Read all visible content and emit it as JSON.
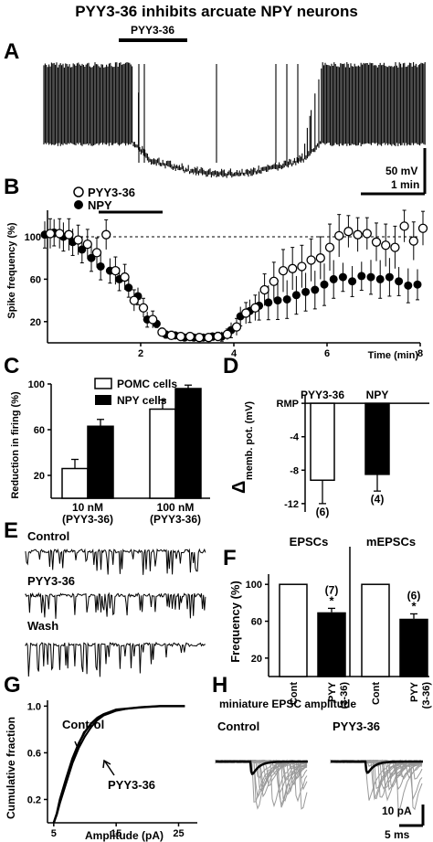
{
  "title": "PYY3-36 inhibits arcuate NPY neurons",
  "panels": {
    "A": {
      "letter": "A",
      "bar_label": "PYY3-36",
      "scale_mv": "50 mV",
      "scale_min": "1 min"
    },
    "B": {
      "letter": "B"
    },
    "C": {
      "letter": "C"
    },
    "D": {
      "letter": "D"
    },
    "E": {
      "letter": "E",
      "traces": [
        "Control",
        "PYY3-36",
        "Wash"
      ]
    },
    "F": {
      "letter": "F"
    },
    "G": {
      "letter": "G",
      "label_control": "Control",
      "label_pyy": "PYY3-36"
    },
    "H": {
      "letter": "H",
      "subtitle": "miniature EPSC amplitude",
      "label_control": "Control",
      "label_pyy": "PYY3-36",
      "scale_pa": "10 pA",
      "scale_ms": "5 ms"
    }
  },
  "chart_data": [
    {
      "panel": "B",
      "type": "scatter",
      "xlabel": "Time (min)",
      "ylabel": "Spike frequency (%)",
      "xlim": [
        0,
        8
      ],
      "ylim": [
        0,
        125
      ],
      "xticks": [
        2,
        4,
        6,
        8
      ],
      "yticks": [
        20,
        60,
        100
      ],
      "reference_line": 100,
      "drug_bar_label": "",
      "series": [
        {
          "name": "PYY3-36",
          "marker": "open-circle",
          "x": [
            0,
            0.2,
            0.4,
            0.6,
            0.8,
            1.0,
            1.2,
            1.4,
            1.6,
            1.8,
            2.0,
            2.2,
            2.4,
            2.6,
            2.8,
            3.0,
            3.2,
            3.4,
            3.6,
            3.8,
            4.0,
            4.2,
            4.4,
            4.6,
            4.8,
            5.0,
            5.2,
            5.4,
            5.6,
            5.8,
            6.0,
            6.2,
            6.4,
            6.6,
            6.8,
            7.0,
            7.2,
            7.4,
            7.6,
            7.8,
            8.0
          ],
          "y": [
            103,
            103,
            102,
            97,
            93,
            85,
            102,
            68,
            62,
            40,
            33,
            22,
            10,
            7,
            6,
            6,
            5,
            5,
            6,
            8,
            15,
            28,
            33,
            50,
            58,
            68,
            70,
            72,
            78,
            80,
            90,
            101,
            105,
            102,
            103,
            95,
            92,
            90,
            110,
            96,
            108
          ],
          "err": [
            14,
            14,
            15,
            14,
            14,
            14,
            14,
            13,
            12,
            10,
            9,
            8,
            4,
            4,
            3,
            3,
            3,
            3,
            4,
            5,
            8,
            10,
            12,
            15,
            18,
            20,
            20,
            20,
            20,
            20,
            22,
            20,
            15,
            16,
            15,
            18,
            20,
            20,
            15,
            18,
            16
          ]
        },
        {
          "name": "NPY",
          "marker": "filled-circle",
          "x": [
            0,
            0.2,
            0.4,
            0.6,
            0.8,
            1.0,
            1.2,
            1.4,
            1.6,
            1.8,
            2.0,
            2.2,
            2.4,
            2.6,
            2.8,
            3.0,
            3.2,
            3.4,
            3.6,
            3.8,
            4.0,
            4.2,
            4.4,
            4.6,
            4.8,
            5.0,
            5.2,
            5.4,
            5.6,
            5.8,
            6.0,
            6.2,
            6.4,
            6.6,
            6.8,
            7.0,
            7.2,
            7.4,
            7.6,
            7.8,
            8.0
          ],
          "y": [
            102,
            104,
            100,
            95,
            88,
            80,
            72,
            68,
            60,
            52,
            44,
            22,
            18,
            8,
            7,
            5,
            5,
            5,
            6,
            6,
            12,
            25,
            30,
            35,
            38,
            40,
            41,
            45,
            48,
            50,
            55,
            60,
            62,
            58,
            63,
            62,
            60,
            62,
            58,
            54,
            55
          ]
        },
        {
          "name": "PYY3-36 error",
          "marker": "none",
          "hidden": true
        }
      ]
    },
    {
      "panel": "C",
      "type": "bar",
      "ylabel": "Reduction in firing (%)",
      "ylim": [
        0,
        100
      ],
      "yticks": [
        20,
        60,
        100
      ],
      "categories": [
        "10 nM (PYY3-36)",
        "100 nM (PYY3-36)"
      ],
      "series": [
        {
          "name": "POMC cells",
          "values": [
            26,
            78
          ],
          "err": [
            8,
            8
          ],
          "fill": "#ffffff"
        },
        {
          "name": "NPY cells",
          "values": [
            63,
            96
          ],
          "err": [
            6,
            3
          ],
          "fill": "#000000"
        }
      ]
    },
    {
      "panel": "D",
      "type": "bar",
      "ylabel": "memb. pot. (mV)",
      "ylabel_prefix": "Δ",
      "ylim": [
        -13,
        1
      ],
      "yticks": [
        0,
        -4,
        -8,
        -12
      ],
      "ytick_labels": [
        "RMP",
        "-4",
        "-8",
        "-12"
      ],
      "categories": [
        "PYY3-36",
        "NPY"
      ],
      "values": [
        -9.2,
        -8.5
      ],
      "err": [
        2.8,
        2.0
      ],
      "n": [
        "(6)",
        "(4)"
      ],
      "fills": [
        "#ffffff",
        "#000000"
      ]
    },
    {
      "panel": "F",
      "type": "bar",
      "ylabel": "Frequency (%)",
      "ylim": [
        0,
        100
      ],
      "yticks": [
        20,
        60,
        100
      ],
      "groups": [
        {
          "title": "EPSCs",
          "categories": [
            "Cont",
            "PYY (3-36)"
          ],
          "values": [
            100,
            69
          ],
          "err": [
            0,
            5
          ],
          "n": "(7)",
          "sig": "*"
        },
        {
          "title": "mEPSCs",
          "categories": [
            "Cont",
            "PYY (3-36)"
          ],
          "values": [
            100,
            62
          ],
          "err": [
            0,
            6
          ],
          "n": "(6)",
          "sig": "*"
        }
      ]
    },
    {
      "panel": "G",
      "type": "line",
      "xlabel": "Amplitude (pA)",
      "ylabel": "Cumulative fraction",
      "xlim": [
        4,
        28
      ],
      "ylim": [
        0,
        1.05
      ],
      "xticks": [
        5,
        15,
        25
      ],
      "yticks": [
        0.2,
        0.6,
        1.0
      ],
      "ytick_labels": [
        "0.2",
        "0.6",
        "1.0"
      ],
      "series": [
        {
          "name": "Control",
          "x": [
            5,
            5.5,
            6,
            7,
            8,
            9,
            10,
            11,
            12,
            13,
            14,
            15,
            17,
            19,
            22,
            26
          ],
          "y": [
            0.0,
            0.08,
            0.2,
            0.38,
            0.55,
            0.68,
            0.78,
            0.85,
            0.9,
            0.93,
            0.95,
            0.97,
            0.98,
            0.99,
            1.0,
            1.0
          ]
        },
        {
          "name": "PYY3-36",
          "x": [
            5,
            5.5,
            6,
            7,
            8,
            9,
            10,
            11,
            12,
            13,
            14,
            15,
            17,
            19,
            22,
            26
          ],
          "y": [
            0.0,
            0.07,
            0.17,
            0.34,
            0.51,
            0.64,
            0.74,
            0.82,
            0.88,
            0.92,
            0.94,
            0.96,
            0.98,
            0.99,
            1.0,
            1.0
          ]
        }
      ]
    }
  ],
  "legends": {
    "B": [
      "PYY3-36",
      "NPY"
    ],
    "C": [
      "POMC cells",
      "NPY cells"
    ]
  }
}
